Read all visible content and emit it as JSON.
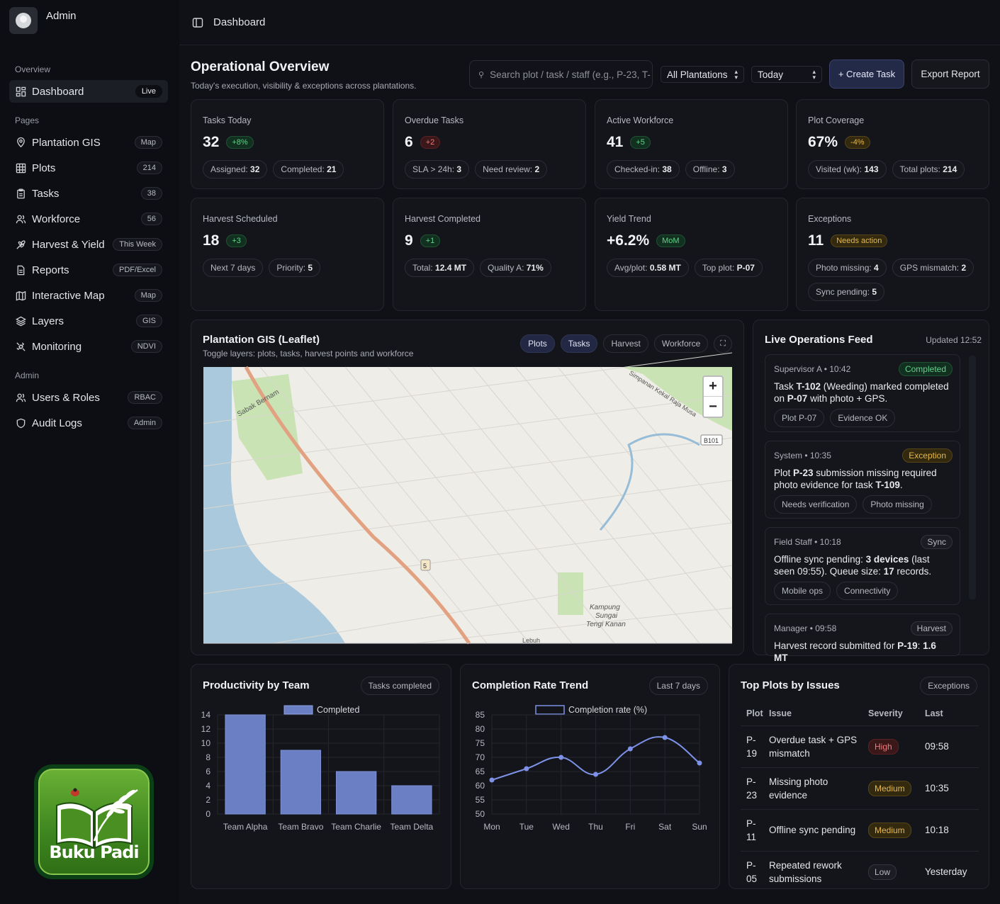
{
  "sidebar": {
    "user_name": "Admin",
    "section_overview": "Overview",
    "section_pages": "Pages",
    "section_admin": "Admin",
    "dashboard": {
      "label": "Dashboard",
      "tag": "Live"
    },
    "pages": [
      {
        "label": "Plantation GIS",
        "tag": "Map",
        "icon": "map-pin-icon"
      },
      {
        "label": "Plots",
        "tag": "214",
        "icon": "grid-icon"
      },
      {
        "label": "Tasks",
        "tag": "38",
        "icon": "clipboard-icon"
      },
      {
        "label": "Workforce",
        "tag": "56",
        "icon": "users-icon"
      },
      {
        "label": "Harvest & Yield",
        "tag": "This Week",
        "icon": "wheat-icon"
      },
      {
        "label": "Reports",
        "tag": "PDF/Excel",
        "icon": "document-icon"
      },
      {
        "label": "Interactive Map",
        "tag": "Map",
        "icon": "map-icon"
      },
      {
        "label": "Layers",
        "tag": "GIS",
        "icon": "layers-icon"
      },
      {
        "label": "Monitoring",
        "tag": "NDVI",
        "icon": "satellite-icon"
      }
    ],
    "admin": [
      {
        "label": "Users & Roles",
        "tag": "RBAC",
        "icon": "users-icon"
      },
      {
        "label": "Audit Logs",
        "tag": "Admin",
        "icon": "shield-icon"
      }
    ],
    "logo_text": "Buku Padi"
  },
  "topbar": {
    "breadcrumb": "Dashboard"
  },
  "header": {
    "title": "Operational Overview",
    "subtitle": "Today's execution, visibility & exceptions across plantations.",
    "search_placeholder": "Search plot / task / staff (e.g., P-23, T-",
    "plantation_select": "All Plantations",
    "date_select": "Today",
    "create_button": "+ Create Task",
    "export_button": "Export Report"
  },
  "kpis": [
    {
      "label": "Tasks Today",
      "value": "32",
      "delta": "+8%",
      "tone": "g",
      "chips": [
        [
          "Assigned:",
          "32"
        ],
        [
          "Completed:",
          "21"
        ]
      ]
    },
    {
      "label": "Overdue Tasks",
      "value": "6",
      "delta": "+2",
      "tone": "r",
      "chips": [
        [
          "SLA > 24h:",
          "3"
        ],
        [
          "Need review:",
          "2"
        ]
      ]
    },
    {
      "label": "Active Workforce",
      "value": "41",
      "delta": "+5",
      "tone": "g",
      "chips": [
        [
          "Checked-in:",
          "38"
        ],
        [
          "Offline:",
          "3"
        ]
      ]
    },
    {
      "label": "Plot Coverage",
      "value": "67%",
      "delta": "-4%",
      "tone": "y",
      "chips": [
        [
          "Visited (wk):",
          "143"
        ],
        [
          "Total plots:",
          "214"
        ]
      ]
    },
    {
      "label": "Harvest Scheduled",
      "value": "18",
      "delta": "+3",
      "tone": "g",
      "chips": [
        [
          "Next 7 days",
          ""
        ],
        [
          "Priority:",
          "5"
        ]
      ]
    },
    {
      "label": "Harvest Completed",
      "value": "9",
      "delta": "+1",
      "tone": "g",
      "chips": [
        [
          "Total:",
          "12.4 MT"
        ],
        [
          "Quality A:",
          "71%"
        ]
      ]
    },
    {
      "label": "Yield Trend",
      "value": "+6.2%",
      "delta": "MoM",
      "tone": "g",
      "chips": [
        [
          "Avg/plot:",
          "0.58 MT"
        ],
        [
          "Top plot:",
          "P-07"
        ]
      ]
    },
    {
      "label": "Exceptions",
      "value": "11",
      "delta": "Needs action",
      "tone": "y",
      "chips": [
        [
          "Photo missing:",
          "4"
        ],
        [
          "GPS mismatch:",
          "2"
        ],
        [
          "Sync pending:",
          "5"
        ]
      ]
    }
  ],
  "map": {
    "title": "Plantation GIS (Leaflet)",
    "subtitle": "Toggle layers: plots, tasks, harvest points and workforce",
    "toggles": [
      {
        "label": "Plots",
        "on": true
      },
      {
        "label": "Tasks",
        "on": true
      },
      {
        "label": "Harvest",
        "on": false
      },
      {
        "label": "Workforce",
        "on": false
      }
    ],
    "zoom_in": "+",
    "zoom_out": "−",
    "labels": {
      "town1": "Sabak Bernam",
      "road": "B101",
      "route": "5",
      "village1": "Kampung",
      "village2": "Sungai",
      "village3": "Tengi Kanan",
      "river": "Simpanan Kekal Raja Musa",
      "bottom": "Lebuh"
    }
  },
  "feed": {
    "title": "Live Operations Feed",
    "updated": "Updated 12:52",
    "items": [
      {
        "head": "Supervisor A • 10:42",
        "badge": "Completed",
        "badge_tone": "g",
        "text_parts": [
          "Task ",
          "T-102",
          " (Weeding) marked completed on ",
          "P-07",
          " with photo + GPS."
        ],
        "chips": [
          "Plot P-07",
          "Evidence OK"
        ]
      },
      {
        "head": "System • 10:35",
        "badge": "Exception",
        "badge_tone": "y",
        "text_parts": [
          "Plot ",
          "P-23",
          " submission missing required photo evidence for task ",
          "T-109",
          "."
        ],
        "chips": [
          "Needs verification",
          "Photo missing"
        ]
      },
      {
        "head": "Field Staff • 10:18",
        "badge": "Sync",
        "badge_tone": "n",
        "text_parts": [
          "Offline sync pending: ",
          "3 devices",
          " (last seen 09:55). Queue size: ",
          "17",
          " records."
        ],
        "chips": [
          "Mobile ops",
          "Connectivity"
        ]
      },
      {
        "head": "Manager • 09:58",
        "badge": "Harvest",
        "badge_tone": "n",
        "text_parts": [
          "Harvest record submitted for ",
          "P-19",
          ": ",
          "1.6 MT",
          ""
        ],
        "chips": []
      }
    ]
  },
  "productivity": {
    "title": "Productivity by Team",
    "badge": "Tasks completed"
  },
  "completion": {
    "title": "Completion Rate Trend",
    "badge": "Last 7 days"
  },
  "issues": {
    "title": "Top Plots by Issues",
    "badge": "Exceptions",
    "headers": [
      "Plot",
      "Issue",
      "Severity",
      "Last"
    ],
    "rows": [
      {
        "plot1": "P-",
        "plot2": "19",
        "issue1": "Overdue task + GPS",
        "issue2": "mismatch",
        "severity": "High",
        "tone": "h",
        "last": "09:58"
      },
      {
        "plot1": "P-",
        "plot2": "23",
        "issue1": "Missing photo",
        "issue2": "evidence",
        "severity": "Medium",
        "tone": "m",
        "last": "10:35"
      },
      {
        "plot1": "P-",
        "plot2": "11",
        "issue1": "Offline sync pending",
        "issue2": "",
        "severity": "Medium",
        "tone": "m",
        "last": "10:18"
      },
      {
        "plot1": "P-",
        "plot2": "05",
        "issue1": "Repeated rework",
        "issue2": "submissions",
        "severity": "Low",
        "tone": "l",
        "last": "Yesterday"
      }
    ]
  },
  "chart_data": [
    {
      "type": "bar",
      "categories": [
        "Team Alpha",
        "Team Bravo",
        "Team Charlie",
        "Team Delta"
      ],
      "series": [
        {
          "name": "Completed",
          "values": [
            14,
            9,
            6,
            4
          ]
        }
      ],
      "ylim": [
        0,
        14
      ],
      "yticks": [
        0,
        2,
        4,
        6,
        8,
        10,
        12,
        14
      ],
      "grid": true,
      "legend": "top",
      "color": "#6b7fc4"
    },
    {
      "type": "line",
      "categories": [
        "Mon",
        "Tue",
        "Wed",
        "Thu",
        "Fri",
        "Sat",
        "Sun"
      ],
      "series": [
        {
          "name": "Completion rate (%)",
          "values": [
            62,
            66,
            70,
            64,
            73,
            77,
            68
          ]
        }
      ],
      "ylim": [
        50,
        85
      ],
      "yticks": [
        50,
        55,
        60,
        65,
        70,
        75,
        80,
        85
      ],
      "grid": true,
      "legend": "top",
      "color": "#7d92e6"
    }
  ]
}
